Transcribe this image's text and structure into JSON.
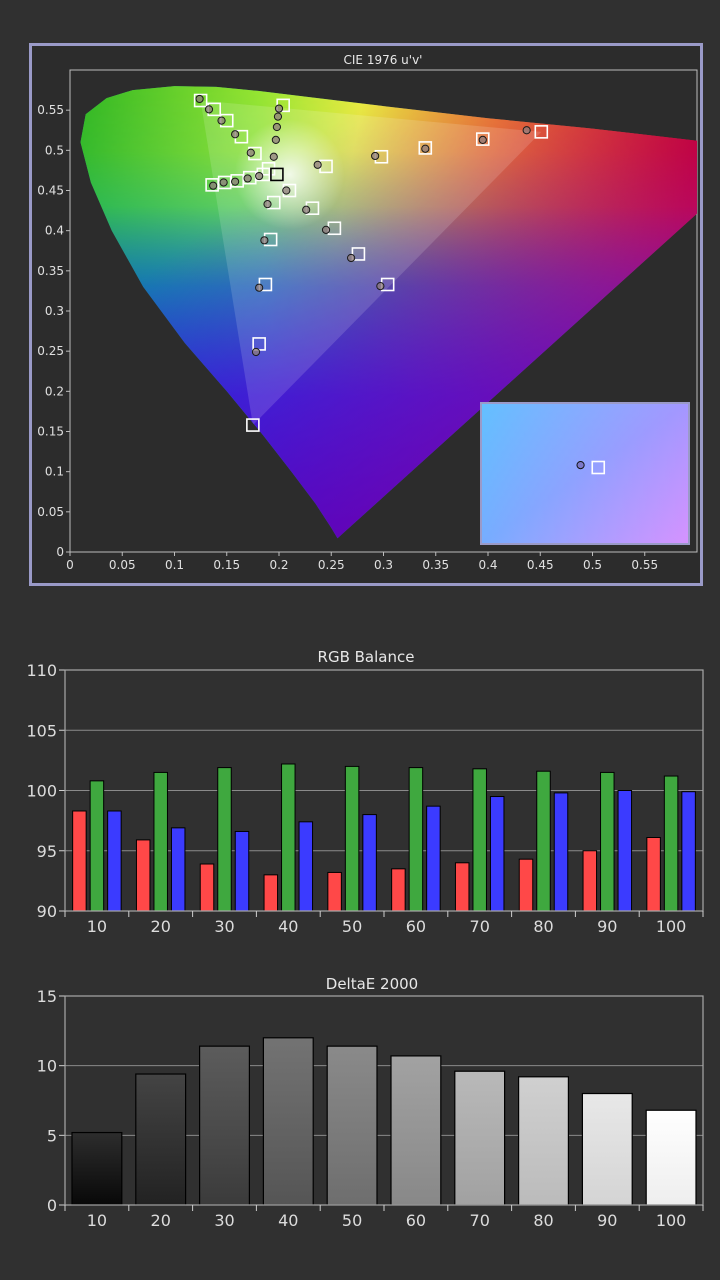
{
  "chart_data": [
    {
      "type": "scatter",
      "title": "CIE 1976 u'v'",
      "xlim": [
        0,
        0.6
      ],
      "ylim": [
        0,
        0.6
      ],
      "x_ticks": [
        "0",
        "0.05",
        "0.1",
        "0.15",
        "0.2",
        "0.25",
        "0.3",
        "0.35",
        "0.4",
        "0.45",
        "0.5",
        "0.55"
      ],
      "y_ticks": [
        "0",
        "0.05",
        "0.1",
        "0.15",
        "0.2",
        "0.25",
        "0.3",
        "0.35",
        "0.4",
        "0.45",
        "0.5",
        "0.55"
      ],
      "gamut": {
        "red": [
          0.451,
          0.523
        ],
        "green": [
          0.125,
          0.562
        ],
        "blue": [
          0.175,
          0.158
        ]
      },
      "targets": [
        [
          0.125,
          0.562
        ],
        [
          0.138,
          0.551
        ],
        [
          0.15,
          0.537
        ],
        [
          0.164,
          0.517
        ],
        [
          0.177,
          0.496
        ],
        [
          0.19,
          0.477
        ],
        [
          0.204,
          0.556
        ],
        [
          0.198,
          0.47
        ],
        [
          0.136,
          0.457
        ],
        [
          0.148,
          0.46
        ],
        [
          0.16,
          0.462
        ],
        [
          0.172,
          0.466
        ],
        [
          0.185,
          0.47
        ],
        [
          0.21,
          0.45
        ],
        [
          0.195,
          0.435
        ],
        [
          0.192,
          0.389
        ],
        [
          0.187,
          0.333
        ],
        [
          0.181,
          0.259
        ],
        [
          0.175,
          0.158
        ],
        [
          0.245,
          0.48
        ],
        [
          0.298,
          0.492
        ],
        [
          0.34,
          0.503
        ],
        [
          0.395,
          0.514
        ],
        [
          0.451,
          0.523
        ],
        [
          0.232,
          0.428
        ],
        [
          0.253,
          0.403
        ],
        [
          0.276,
          0.371
        ],
        [
          0.304,
          0.333
        ]
      ],
      "measured": [
        [
          0.124,
          0.564
        ],
        [
          0.133,
          0.551
        ],
        [
          0.145,
          0.537
        ],
        [
          0.158,
          0.52
        ],
        [
          0.173,
          0.497
        ],
        [
          0.195,
          0.492
        ],
        [
          0.2,
          0.552
        ],
        [
          0.199,
          0.542
        ],
        [
          0.198,
          0.529
        ],
        [
          0.197,
          0.513
        ],
        [
          0.137,
          0.456
        ],
        [
          0.147,
          0.46
        ],
        [
          0.158,
          0.461
        ],
        [
          0.17,
          0.465
        ],
        [
          0.181,
          0.468
        ],
        [
          0.207,
          0.45
        ],
        [
          0.189,
          0.433
        ],
        [
          0.186,
          0.388
        ],
        [
          0.181,
          0.329
        ],
        [
          0.178,
          0.249
        ],
        [
          0.237,
          0.482
        ],
        [
          0.292,
          0.493
        ],
        [
          0.34,
          0.502
        ],
        [
          0.395,
          0.513
        ],
        [
          0.437,
          0.525
        ],
        [
          0.226,
          0.426
        ],
        [
          0.245,
          0.401
        ],
        [
          0.269,
          0.366
        ],
        [
          0.297,
          0.331
        ]
      ],
      "inset": {
        "measured": [
          0.472,
          0.103
        ],
        "target": [
          0.494,
          0.1
        ]
      }
    },
    {
      "type": "bar",
      "title": "RGB Balance",
      "categories": [
        "10",
        "20",
        "30",
        "40",
        "50",
        "60",
        "70",
        "80",
        "90",
        "100"
      ],
      "ylim": [
        90,
        110
      ],
      "y_ticks": [
        "90",
        "95",
        "100",
        "105",
        "110"
      ],
      "colors": {
        "red": "#ff4848",
        "green": "#3fa83f",
        "blue": "#3b3bff"
      },
      "series": [
        {
          "values": [
            98.3,
            95.9,
            93.9,
            93.0,
            93.2,
            93.5,
            94.0,
            94.3,
            95.0,
            96.1
          ]
        },
        {
          "values": [
            100.8,
            101.5,
            101.9,
            102.2,
            102.0,
            101.9,
            101.8,
            101.6,
            101.5,
            101.2
          ]
        },
        {
          "values": [
            98.3,
            96.9,
            96.6,
            97.4,
            98.0,
            98.7,
            99.5,
            99.8,
            100.0,
            99.9
          ]
        }
      ]
    },
    {
      "type": "bar",
      "title": "DeltaE 2000",
      "categories": [
        "10",
        "20",
        "30",
        "40",
        "50",
        "60",
        "70",
        "80",
        "90",
        "100"
      ],
      "ylim": [
        0,
        15
      ],
      "y_ticks": [
        "0",
        "5",
        "10",
        "15"
      ],
      "values": [
        5.2,
        9.4,
        11.4,
        12.0,
        11.4,
        10.7,
        9.6,
        9.2,
        8.0,
        6.8
      ]
    }
  ]
}
